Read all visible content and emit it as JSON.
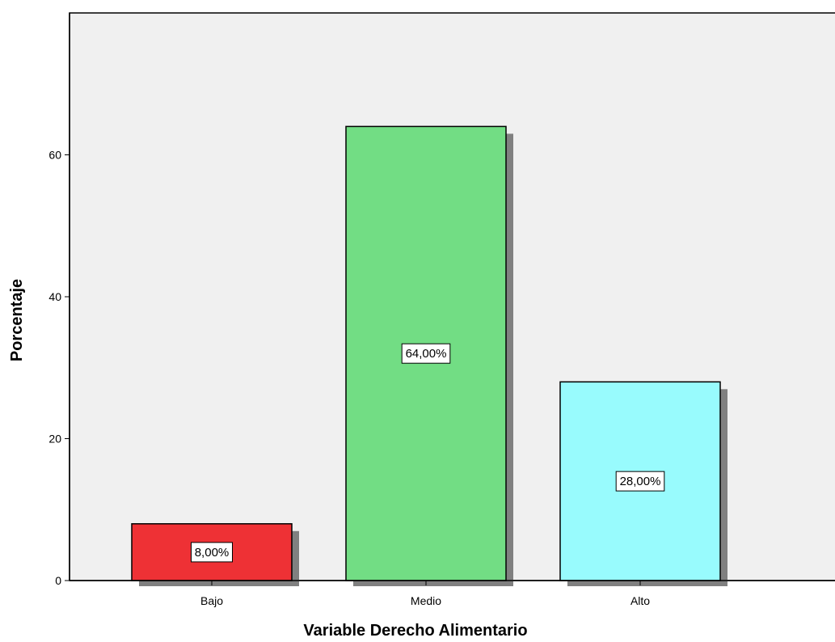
{
  "chart_data": {
    "type": "bar",
    "title": "",
    "xlabel": "Variable Derecho Alimentario",
    "ylabel": "Porcentaje",
    "categories": [
      "Bajo",
      "Medio",
      "Alto"
    ],
    "values": [
      8,
      64,
      28
    ],
    "data_labels": [
      "8,00%",
      "64,00%",
      "28,00%"
    ],
    "ylim": [
      0,
      80
    ],
    "yticks": [
      0,
      20,
      40,
      60
    ],
    "ytick_labels": [
      "0",
      "20",
      "40",
      "60"
    ],
    "colors": [
      "#ee3135",
      "#72dd84",
      "#98fbfd"
    ],
    "plot_background": "#f0f0f0",
    "shadow_color": "#808080",
    "grid": false,
    "legend": "none"
  }
}
